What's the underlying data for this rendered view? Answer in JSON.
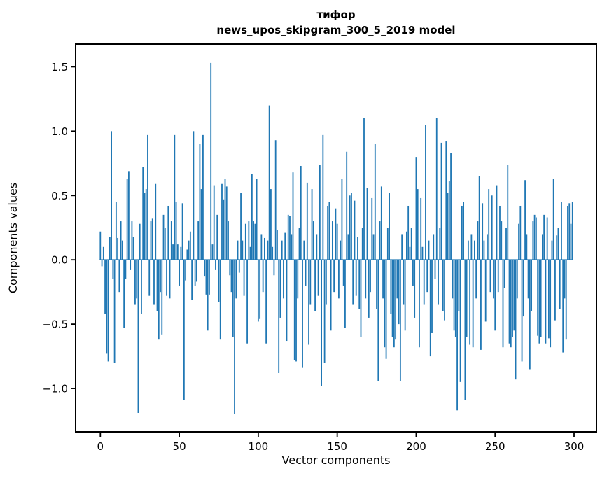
{
  "figure": {
    "title": "тифор",
    "subtitle": "news_upos_skipgram_300_5_2019 model",
    "xlabel": "Vector components",
    "ylabel": "Components values"
  },
  "chart_data": {
    "type": "bar",
    "title": "тифор",
    "subtitle": "news_upos_skipgram_300_5_2019 model",
    "xlabel": "Vector components",
    "ylabel": "Components values",
    "bar_color": "#1f77b4",
    "grid": false,
    "legend": null,
    "x_start": 0,
    "n_components": 300,
    "xlim": [
      -15.6,
      314.2
    ],
    "ylim": [
      -1.34,
      1.68
    ],
    "xticks": [
      0,
      50,
      100,
      150,
      200,
      250,
      300
    ],
    "yticks": [
      1.5,
      1.0,
      0.5,
      0.0,
      -0.5,
      -1.0
    ],
    "values": [
      0.22,
      -0.05,
      0.1,
      -0.42,
      -0.73,
      -0.79,
      0.18,
      1.0,
      -0.15,
      -0.8,
      0.45,
      0.17,
      -0.25,
      0.3,
      0.15,
      -0.53,
      -0.15,
      0.63,
      0.69,
      -0.08,
      0.3,
      0.18,
      -0.35,
      -0.3,
      -1.19,
      0.28,
      -0.42,
      0.72,
      0.52,
      0.55,
      0.97,
      -0.28,
      0.3,
      0.32,
      -0.35,
      0.59,
      -0.4,
      -0.62,
      -0.25,
      -0.58,
      0.35,
      0.25,
      -0.28,
      0.42,
      -0.3,
      0.3,
      0.12,
      0.97,
      0.45,
      0.12,
      -0.2,
      0.1,
      0.44,
      -1.09,
      -0.16,
      0.08,
      0.15,
      0.22,
      -0.31,
      1.0,
      -0.2,
      -0.17,
      0.3,
      0.9,
      0.55,
      0.97,
      -0.13,
      -0.27,
      -0.55,
      -0.27,
      1.53,
      0.12,
      0.58,
      -0.08,
      0.35,
      -0.33,
      -0.62,
      0.59,
      0.47,
      0.63,
      0.57,
      0.3,
      -0.12,
      -0.25,
      -0.6,
      -1.2,
      -0.3,
      0.15,
      -0.1,
      0.52,
      0.15,
      -0.28,
      0.28,
      -0.65,
      0.3,
      0.1,
      0.67,
      0.3,
      0.28,
      0.63,
      -0.48,
      -0.46,
      0.2,
      -0.25,
      0.17,
      -0.65,
      0.15,
      1.2,
      0.55,
      0.1,
      -0.12,
      0.93,
      0.23,
      -0.88,
      -0.45,
      0.15,
      -0.3,
      0.21,
      -0.63,
      0.35,
      0.34,
      0.2,
      0.68,
      -0.78,
      -0.79,
      -0.3,
      0.25,
      0.73,
      -0.84,
      0.15,
      -0.2,
      0.6,
      -0.66,
      -0.35,
      0.55,
      0.3,
      -0.4,
      0.2,
      -0.28,
      0.74,
      -0.98,
      0.97,
      -0.8,
      -0.35,
      0.42,
      0.45,
      -0.55,
      0.3,
      -0.25,
      0.4,
      0.28,
      -0.3,
      0.15,
      0.63,
      -0.2,
      -0.53,
      0.84,
      0.2,
      0.5,
      0.52,
      -0.35,
      0.46,
      -0.28,
      0.18,
      -0.38,
      -0.6,
      0.25,
      1.1,
      -0.3,
      0.56,
      -0.45,
      -0.25,
      0.48,
      0.2,
      0.9,
      -0.38,
      -0.94,
      0.3,
      0.57,
      -0.3,
      -0.68,
      -0.77,
      0.25,
      0.52,
      -0.42,
      -0.6,
      -0.68,
      -0.62,
      -0.3,
      -0.5,
      -0.94,
      0.2,
      -0.35,
      -0.55,
      0.22,
      0.42,
      0.1,
      0.25,
      -0.2,
      -0.45,
      0.8,
      0.55,
      -0.68,
      0.48,
      0.1,
      -0.35,
      1.05,
      -0.25,
      0.15,
      -0.75,
      -0.57,
      0.2,
      -0.15,
      1.1,
      -0.35,
      0.25,
      0.91,
      -0.4,
      -0.47,
      0.92,
      0.52,
      0.61,
      0.83,
      -0.3,
      -0.55,
      -0.6,
      -1.17,
      -0.4,
      -0.95,
      0.42,
      0.45,
      -1.09,
      -0.6,
      0.15,
      -0.66,
      0.2,
      -0.68,
      0.15,
      -0.3,
      0.3,
      0.65,
      -0.7,
      0.44,
      0.15,
      -0.48,
      0.2,
      0.55,
      -0.25,
      0.5,
      -0.3,
      -0.55,
      0.58,
      -0.25,
      0.42,
      0.3,
      -0.68,
      -0.22,
      0.25,
      0.74,
      -0.65,
      -0.68,
      -0.6,
      -0.55,
      -0.93,
      -0.3,
      0.28,
      0.42,
      -0.79,
      -0.44,
      0.62,
      0.2,
      -0.3,
      -0.85,
      -0.4,
      0.3,
      0.35,
      0.33,
      -0.59,
      -0.65,
      -0.6,
      0.2,
      0.35,
      -0.65,
      0.33,
      -0.61,
      -0.68,
      0.15,
      0.63,
      -0.47,
      0.19,
      0.25,
      -0.38,
      0.45,
      -0.72,
      -0.3,
      -0.62,
      0.42,
      0.44,
      0.28,
      0.45
    ]
  }
}
